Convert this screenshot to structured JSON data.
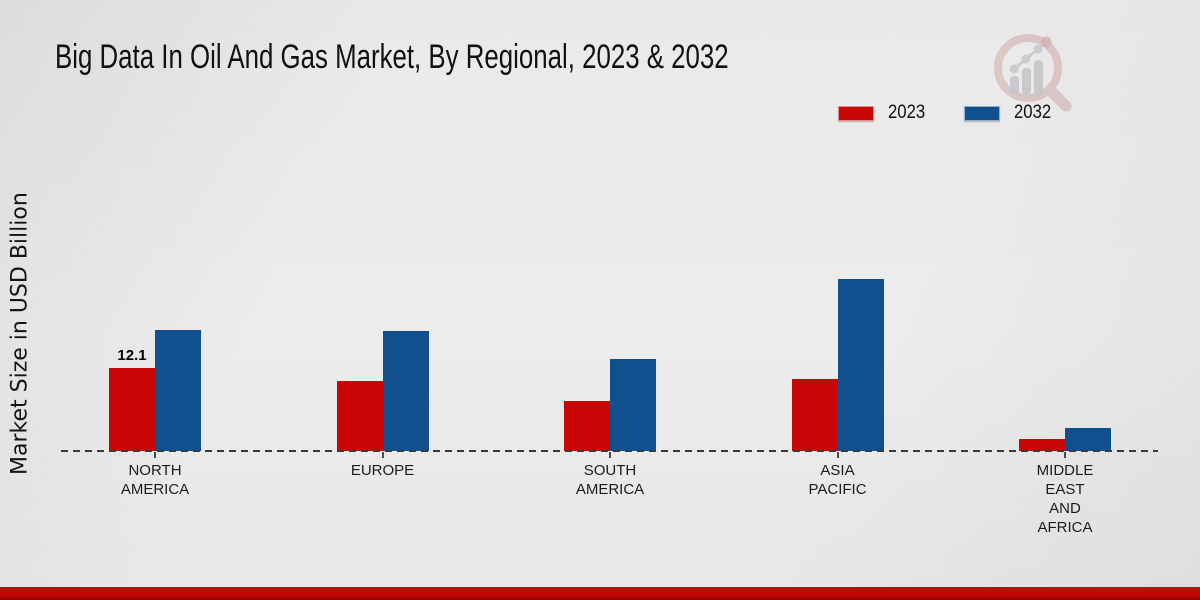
{
  "page": {
    "title": "Big Data In Oil And Gas Market, By Regional, 2023 & 2032",
    "ylabel": "Market Size in USD Billion"
  },
  "legend": {
    "items": [
      {
        "label": "2023",
        "color": "#c90707"
      },
      {
        "label": "2032",
        "color": "#11508e"
      }
    ]
  },
  "colors": {
    "bar_2023": "#c90707",
    "bar_2032": "#11508e",
    "baseline": "#3b3b3b",
    "bottom_strip": "#c40505",
    "background": "#eaeaea",
    "text": "#1c1c1c"
  },
  "chart_data": {
    "type": "bar",
    "title": "Big Data In Oil And Gas Market, By Regional, 2023 & 2032",
    "xlabel": "",
    "ylabel": "Market Size in USD Billion",
    "unit": "USD Billion",
    "grid": false,
    "legend_position": "top-right",
    "baseline_style": "dashed",
    "categories": [
      "NORTH AMERICA",
      "EUROPE",
      "SOUTH AMERICA",
      "ASIA PACIFIC",
      "MIDDLE EAST AND AFRICA"
    ],
    "category_label_lines": [
      [
        "NORTH",
        "AMERICA"
      ],
      [
        "EUROPE"
      ],
      [
        "SOUTH",
        "AMERICA"
      ],
      [
        "ASIA",
        "PACIFIC"
      ],
      [
        "MIDDLE",
        "EAST",
        "AND",
        "AFRICA"
      ]
    ],
    "series": [
      {
        "name": "2023",
        "color": "#c90707",
        "values": [
          12.1,
          10.1,
          7.2,
          10.4,
          1.8
        ]
      },
      {
        "name": "2032",
        "color": "#11508e",
        "values": [
          17.6,
          17.4,
          13.4,
          25.0,
          3.3
        ]
      }
    ],
    "value_labels": [
      {
        "category_index": 0,
        "series_index": 0,
        "text": "12.1"
      }
    ],
    "ylim": [
      0,
      27
    ]
  }
}
